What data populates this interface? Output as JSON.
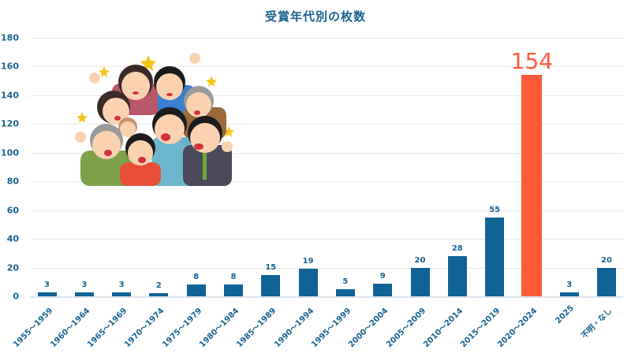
{
  "chart_data": {
    "type": "bar",
    "title": "受賞年代別の枚数",
    "xlabel": "",
    "ylabel": "",
    "ylim": [
      0,
      180
    ],
    "yticks": [
      0,
      20,
      40,
      60,
      80,
      100,
      120,
      140,
      160,
      180
    ],
    "grid": true,
    "legend": null,
    "categories": [
      "1955～1959",
      "1960～1964",
      "1965～1969",
      "1970～1974",
      "1975～1979",
      "1980～1984",
      "1985～1989",
      "1990～1994",
      "1995～1999",
      "2000～2004",
      "2005～2009",
      "2010～2014",
      "2015～2019",
      "2020～2024",
      "2025",
      "不明・なし"
    ],
    "values": [
      3,
      3,
      3,
      2,
      8,
      8,
      15,
      19,
      5,
      9,
      20,
      28,
      55,
      154,
      3,
      20
    ],
    "highlight_index": 13,
    "colors": {
      "bar": "#0f6396",
      "highlight": "#fd5a3a",
      "text": "#1a6391",
      "grid": "#e8e8e8"
    },
    "annotations": [
      "Illustration of cheering crowd of people (upper left)"
    ]
  },
  "labels": {
    "title": "受賞年代別の枚数",
    "yticks": [
      "0",
      "20",
      "40",
      "60",
      "80",
      "100",
      "120",
      "140",
      "160",
      "180"
    ],
    "x": [
      "1955～1959",
      "1960～1964",
      "1965～1969",
      "1970～1974",
      "1975～1979",
      "1980～1984",
      "1985～1989",
      "1990～1994",
      "1995～1999",
      "2000～2004",
      "2005～2009",
      "2010～2014",
      "2015～2019",
      "2020～2024",
      "2025",
      "不明・なし"
    ],
    "v": [
      "3",
      "3",
      "3",
      "2",
      "8",
      "8",
      "15",
      "19",
      "5",
      "9",
      "20",
      "28",
      "55",
      "154",
      "3",
      "20"
    ]
  }
}
